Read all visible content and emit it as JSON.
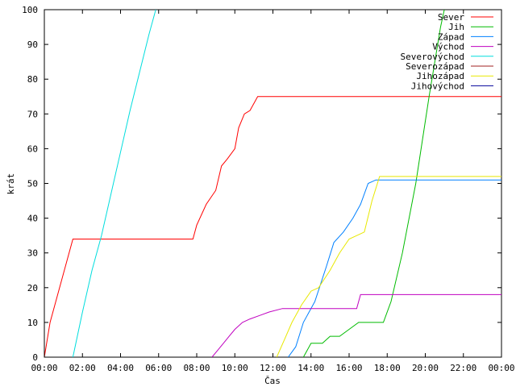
{
  "chart_data": {
    "type": "line",
    "xlabel": "Čas",
    "ylabel": "krát",
    "xlim": [
      0,
      24
    ],
    "ylim": [
      0,
      100
    ],
    "x_ticks": [
      {
        "v": 0,
        "label": "00:00"
      },
      {
        "v": 2,
        "label": "02:00"
      },
      {
        "v": 4,
        "label": "04:00"
      },
      {
        "v": 6,
        "label": "06:00"
      },
      {
        "v": 8,
        "label": "08:00"
      },
      {
        "v": 10,
        "label": "10:00"
      },
      {
        "v": 12,
        "label": "12:00"
      },
      {
        "v": 14,
        "label": "14:00"
      },
      {
        "v": 16,
        "label": "16:00"
      },
      {
        "v": 18,
        "label": "18:00"
      },
      {
        "v": 20,
        "label": "20:00"
      },
      {
        "v": 22,
        "label": "22:00"
      },
      {
        "v": 24,
        "label": "00:00"
      }
    ],
    "y_ticks": [
      0,
      10,
      20,
      30,
      40,
      50,
      60,
      70,
      80,
      90,
      100
    ],
    "grid": false,
    "legend_position": "top-right",
    "series": [
      {
        "name": "Sever",
        "color": "#ff0000",
        "x": [
          0,
          0.3,
          0.8,
          1.5,
          7.8,
          8.0,
          8.5,
          9.0,
          9.3,
          9.6,
          10.0,
          10.2,
          10.5,
          10.8,
          11.2,
          24
        ],
        "y": [
          0,
          10,
          20,
          34,
          34,
          38,
          44,
          48,
          55,
          57,
          60,
          66,
          70,
          71,
          75,
          75
        ]
      },
      {
        "name": "Jih",
        "color": "#00bb00",
        "x": [
          13.6,
          14.0,
          14.6,
          15.0,
          15.5,
          16.0,
          16.5,
          17.8,
          18.2,
          18.8,
          19.5,
          20.2,
          20.8,
          21.0
        ],
        "y": [
          0,
          4,
          4,
          6,
          6,
          8,
          10,
          10,
          16,
          30,
          50,
          75,
          95,
          100
        ]
      },
      {
        "name": "Západ",
        "color": "#0080ff",
        "x": [
          12.8,
          13.2,
          13.6,
          14.2,
          14.8,
          15.2,
          15.7,
          16.2,
          16.6,
          17.0,
          17.4,
          24
        ],
        "y": [
          0,
          3,
          10,
          16,
          26,
          33,
          36,
          40,
          44,
          50,
          51,
          51
        ]
      },
      {
        "name": "Východ",
        "color": "#c000c0",
        "x": [
          8.8,
          9.1,
          9.4,
          9.7,
          10.0,
          10.4,
          10.8,
          11.3,
          11.8,
          12.5,
          16.4,
          16.6,
          24
        ],
        "y": [
          0,
          2,
          4,
          6,
          8,
          10,
          11,
          12,
          13,
          14,
          14,
          18,
          18
        ]
      },
      {
        "name": "Severovýchod",
        "color": "#00dddd",
        "x": [
          1.5,
          2.0,
          2.5,
          3.0,
          3.5,
          4.0,
          4.5,
          5.0,
          5.5,
          5.85
        ],
        "y": [
          0,
          13,
          25,
          35,
          47,
          59,
          71,
          82,
          93,
          100
        ]
      },
      {
        "name": "Severozápad",
        "color": "#a02020",
        "x": [],
        "y": []
      },
      {
        "name": "Jihozápad",
        "color": "#e8e800",
        "x": [
          12.2,
          12.6,
          13.0,
          13.5,
          14.0,
          14.4,
          15.0,
          15.5,
          16.0,
          16.8,
          17.2,
          17.6,
          24
        ],
        "y": [
          0,
          5,
          10,
          15,
          19,
          20,
          25,
          30,
          34,
          36,
          45,
          52,
          52
        ]
      },
      {
        "name": "Jihovýchod",
        "color": "#000099",
        "x": [],
        "y": []
      }
    ]
  }
}
